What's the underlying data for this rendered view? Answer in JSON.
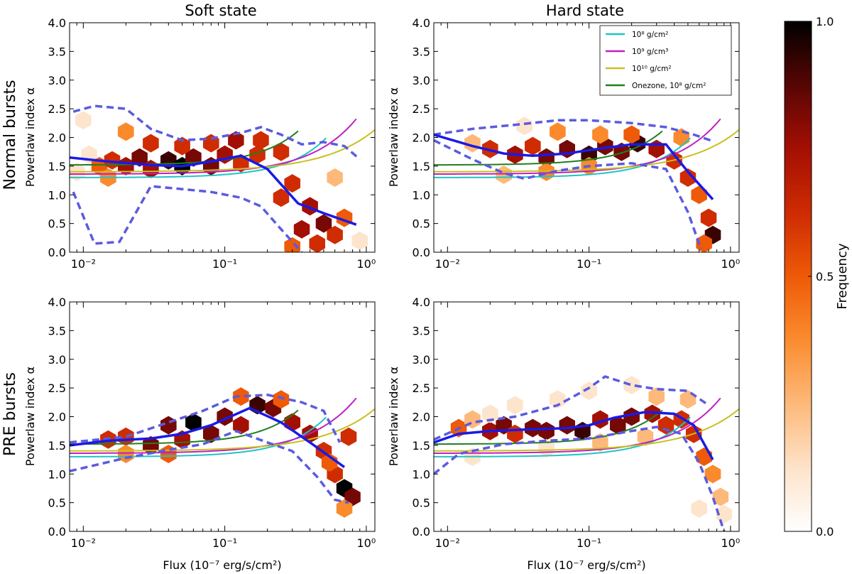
{
  "figure": {
    "column_titles": [
      "Soft state",
      "Hard state"
    ],
    "row_titles": [
      "Normal bursts",
      "PRE bursts"
    ],
    "ylabel": "Powerlaw index α",
    "xlabel": "Flux (10⁻⁷ erg/s/cm²)",
    "colors": {
      "hex_cmap": [
        "#ffffff",
        "#fde4cc",
        "#fdb97a",
        "#fa8a2c",
        "#ee5a07",
        "#cf2c02",
        "#a40f03",
        "#760805",
        "#3a0302",
        "#000000"
      ],
      "median_line": "#1a1ae6",
      "envelope_dashed": "#5b5be0",
      "model_1e8": "#20c4c4",
      "model_1e9": "#c020c0",
      "model_1e10": "#c8c020",
      "model_onezone": "#208020"
    }
  },
  "legend": {
    "items": [
      {
        "label": "10⁸ g/cm²",
        "color": "#20c4c4"
      },
      {
        "label": "10⁹ g/cm³",
        "color": "#c020c0"
      },
      {
        "label": "10¹⁰ g/cm²",
        "color": "#c8c020"
      },
      {
        "label": "Onezone, 10⁸ g/cm²",
        "color": "#208020"
      }
    ]
  },
  "colorbar": {
    "label": "Frequency",
    "ticks": [
      "0.0",
      "0.5",
      "1.0"
    ],
    "range": [
      0,
      1
    ]
  },
  "chart_data": [
    {
      "type": "scatter",
      "title": "Soft state",
      "row": "Normal bursts",
      "xscale": "log",
      "xlim": [
        0.008,
        1.15
      ],
      "ylim": [
        0,
        4
      ],
      "xticks": [
        "10⁻²",
        "10⁻¹",
        "10⁰"
      ],
      "yticks": [
        "0.0",
        "0.5",
        "1.0",
        "1.5",
        "2.0",
        "2.5",
        "3.0",
        "3.5",
        "4.0"
      ],
      "median": [
        [
          0.008,
          1.65
        ],
        [
          0.015,
          1.58
        ],
        [
          0.03,
          1.52
        ],
        [
          0.05,
          1.5
        ],
        [
          0.08,
          1.58
        ],
        [
          0.13,
          1.68
        ],
        [
          0.2,
          1.45
        ],
        [
          0.33,
          0.85
        ],
        [
          0.5,
          0.68
        ],
        [
          0.85,
          0.48
        ]
      ],
      "envelope_upper": [
        [
          0.0085,
          2.45
        ],
        [
          0.012,
          2.55
        ],
        [
          0.02,
          2.5
        ],
        [
          0.03,
          2.15
        ],
        [
          0.05,
          1.95
        ],
        [
          0.08,
          1.98
        ],
        [
          0.13,
          2.08
        ],
        [
          0.18,
          2.18
        ],
        [
          0.25,
          2.05
        ],
        [
          0.35,
          1.88
        ],
        [
          0.5,
          1.92
        ],
        [
          0.7,
          1.85
        ],
        [
          0.9,
          1.62
        ]
      ],
      "envelope_lower": [
        [
          0.0085,
          1.05
        ],
        [
          0.012,
          0.15
        ],
        [
          0.018,
          0.18
        ],
        [
          0.03,
          1.15
        ],
        [
          0.05,
          1.1
        ],
        [
          0.08,
          1.05
        ],
        [
          0.13,
          0.95
        ],
        [
          0.18,
          0.8
        ],
        [
          0.25,
          0.4
        ],
        [
          0.35,
          0.0
        ]
      ],
      "models_end_x": [
        0.52,
        0.85,
        1.15,
        0.33
      ],
      "hexbins": [
        [
          0.009,
          1.4,
          0.1
        ],
        [
          0.011,
          1.7,
          0.15
        ],
        [
          0.013,
          1.5,
          0.4
        ],
        [
          0.016,
          1.6,
          0.6
        ],
        [
          0.02,
          1.5,
          0.7
        ],
        [
          0.025,
          1.65,
          0.75
        ],
        [
          0.03,
          1.45,
          0.7
        ],
        [
          0.04,
          1.6,
          0.85
        ],
        [
          0.05,
          1.5,
          0.95
        ],
        [
          0.06,
          1.65,
          0.8
        ],
        [
          0.08,
          1.5,
          0.75
        ],
        [
          0.1,
          1.7,
          0.7
        ],
        [
          0.13,
          1.55,
          0.6
        ],
        [
          0.17,
          1.7,
          0.55
        ],
        [
          0.02,
          2.1,
          0.3
        ],
        [
          0.03,
          1.9,
          0.5
        ],
        [
          0.05,
          1.85,
          0.55
        ],
        [
          0.08,
          1.9,
          0.6
        ],
        [
          0.12,
          1.95,
          0.65
        ],
        [
          0.18,
          1.95,
          0.55
        ],
        [
          0.25,
          1.75,
          0.5
        ],
        [
          0.3,
          1.2,
          0.6
        ],
        [
          0.4,
          0.8,
          0.7
        ],
        [
          0.5,
          0.5,
          0.75
        ],
        [
          0.35,
          0.4,
          0.7
        ],
        [
          0.6,
          0.3,
          0.5
        ],
        [
          0.3,
          0.1,
          0.4
        ],
        [
          0.45,
          0.15,
          0.5
        ],
        [
          0.7,
          0.6,
          0.45
        ],
        [
          0.25,
          0.95,
          0.5
        ],
        [
          0.015,
          1.3,
          0.35
        ],
        [
          0.01,
          2.3,
          0.1
        ],
        [
          0.6,
          1.3,
          0.2
        ],
        [
          0.9,
          0.2,
          0.15
        ]
      ]
    },
    {
      "type": "scatter",
      "title": "Hard state",
      "row": "Normal bursts",
      "xscale": "log",
      "xlim": [
        0.008,
        1.15
      ],
      "ylim": [
        0,
        4
      ],
      "xticks": [
        "10⁻²",
        "10⁻¹",
        "10⁰"
      ],
      "yticks": [
        "0.0",
        "0.5",
        "1.0",
        "1.5",
        "2.0",
        "2.5",
        "3.0",
        "3.5",
        "4.0"
      ],
      "median": [
        [
          0.008,
          2.05
        ],
        [
          0.015,
          1.85
        ],
        [
          0.025,
          1.72
        ],
        [
          0.04,
          1.68
        ],
        [
          0.07,
          1.72
        ],
        [
          0.1,
          1.78
        ],
        [
          0.2,
          1.88
        ],
        [
          0.35,
          1.88
        ],
        [
          0.5,
          1.4
        ],
        [
          0.75,
          0.92
        ]
      ],
      "envelope_upper": [
        [
          0.008,
          2.05
        ],
        [
          0.015,
          2.15
        ],
        [
          0.03,
          2.22
        ],
        [
          0.06,
          2.3
        ],
        [
          0.1,
          2.3
        ],
        [
          0.2,
          2.25
        ],
        [
          0.35,
          2.18
        ],
        [
          0.55,
          2.05
        ],
        [
          0.72,
          1.95
        ]
      ],
      "envelope_lower": [
        [
          0.008,
          1.95
        ],
        [
          0.015,
          1.62
        ],
        [
          0.025,
          1.38
        ],
        [
          0.035,
          1.28
        ],
        [
          0.06,
          1.42
        ],
        [
          0.1,
          1.5
        ],
        [
          0.2,
          1.55
        ],
        [
          0.35,
          1.45
        ],
        [
          0.5,
          0.7
        ],
        [
          0.62,
          0.05
        ]
      ],
      "models_end_x": [
        0.52,
        0.85,
        1.15,
        0.33
      ],
      "hexbins": [
        [
          0.02,
          1.8,
          0.5
        ],
        [
          0.03,
          1.7,
          0.7
        ],
        [
          0.04,
          1.85,
          0.6
        ],
        [
          0.05,
          1.65,
          0.8
        ],
        [
          0.07,
          1.8,
          0.75
        ],
        [
          0.1,
          1.7,
          0.85
        ],
        [
          0.13,
          1.85,
          0.8
        ],
        [
          0.17,
          1.75,
          0.75
        ],
        [
          0.22,
          1.9,
          0.85
        ],
        [
          0.3,
          1.8,
          0.7
        ],
        [
          0.4,
          1.6,
          0.55
        ],
        [
          0.5,
          1.3,
          0.5
        ],
        [
          0.6,
          1.0,
          0.45
        ],
        [
          0.7,
          0.6,
          0.55
        ],
        [
          0.75,
          0.3,
          0.9
        ],
        [
          0.65,
          0.15,
          0.4
        ],
        [
          0.035,
          2.2,
          0.15
        ],
        [
          0.06,
          2.1,
          0.3
        ],
        [
          0.12,
          2.05,
          0.35
        ],
        [
          0.2,
          2.05,
          0.4
        ],
        [
          0.025,
          1.35,
          0.2
        ],
        [
          0.05,
          1.4,
          0.3
        ],
        [
          0.1,
          1.5,
          0.35
        ],
        [
          0.015,
          1.9,
          0.25
        ],
        [
          0.45,
          2.0,
          0.3
        ]
      ]
    },
    {
      "type": "scatter",
      "title": "Soft state",
      "row": "PRE bursts",
      "xscale": "log",
      "xlim": [
        0.008,
        1.15
      ],
      "ylim": [
        0,
        4
      ],
      "xticks": [
        "10⁻²",
        "10⁻¹",
        "10⁰"
      ],
      "yticks": [
        "0.0",
        "0.5",
        "1.0",
        "1.5",
        "2.0",
        "2.5",
        "3.0",
        "3.5",
        "4.0"
      ],
      "median": [
        [
          0.008,
          1.5
        ],
        [
          0.015,
          1.58
        ],
        [
          0.03,
          1.62
        ],
        [
          0.05,
          1.7
        ],
        [
          0.08,
          1.85
        ],
        [
          0.15,
          2.15
        ],
        [
          0.25,
          1.9
        ],
        [
          0.4,
          1.55
        ],
        [
          0.7,
          1.12
        ]
      ],
      "envelope_upper": [
        [
          0.008,
          1.55
        ],
        [
          0.02,
          1.65
        ],
        [
          0.04,
          1.9
        ],
        [
          0.07,
          2.1
        ],
        [
          0.12,
          2.35
        ],
        [
          0.2,
          2.38
        ],
        [
          0.35,
          2.25
        ],
        [
          0.5,
          2.1
        ],
        [
          0.65,
          1.55
        ]
      ],
      "envelope_lower": [
        [
          0.008,
          1.05
        ],
        [
          0.02,
          1.28
        ],
        [
          0.04,
          1.42
        ],
        [
          0.07,
          1.52
        ],
        [
          0.12,
          1.75
        ],
        [
          0.2,
          1.55
        ],
        [
          0.3,
          1.4
        ],
        [
          0.45,
          0.95
        ],
        [
          0.6,
          0.55
        ],
        [
          0.75,
          0.5
        ]
      ],
      "models_end_x": [
        0.52,
        0.85,
        1.15,
        0.33
      ],
      "hexbins": [
        [
          0.015,
          1.6,
          0.6
        ],
        [
          0.02,
          1.65,
          0.55
        ],
        [
          0.03,
          1.5,
          0.75
        ],
        [
          0.04,
          1.85,
          0.8
        ],
        [
          0.05,
          1.6,
          0.7
        ],
        [
          0.06,
          1.9,
          1.0
        ],
        [
          0.08,
          1.7,
          0.75
        ],
        [
          0.1,
          2.0,
          0.8
        ],
        [
          0.13,
          1.85,
          0.7
        ],
        [
          0.17,
          2.2,
          0.85
        ],
        [
          0.22,
          2.15,
          0.75
        ],
        [
          0.3,
          1.9,
          0.65
        ],
        [
          0.4,
          1.7,
          0.7
        ],
        [
          0.5,
          1.4,
          0.6
        ],
        [
          0.6,
          1.0,
          0.55
        ],
        [
          0.7,
          0.75,
          1.0
        ],
        [
          0.8,
          0.6,
          0.8
        ],
        [
          0.7,
          0.4,
          0.35
        ],
        [
          0.55,
          1.2,
          0.45
        ],
        [
          0.02,
          1.35,
          0.35
        ],
        [
          0.04,
          1.35,
          0.4
        ],
        [
          0.13,
          2.35,
          0.4
        ],
        [
          0.25,
          2.3,
          0.45
        ],
        [
          0.75,
          1.65,
          0.6
        ]
      ]
    },
    {
      "type": "scatter",
      "title": "Hard state",
      "row": "PRE bursts",
      "xscale": "log",
      "xlim": [
        0.008,
        1.15
      ],
      "ylim": [
        0,
        4
      ],
      "xticks": [
        "10⁻²",
        "10⁻¹",
        "10⁰"
      ],
      "yticks": [
        "0.0",
        "0.5",
        "1.0",
        "1.5",
        "2.0",
        "2.5",
        "3.0",
        "3.5",
        "4.0"
      ],
      "median": [
        [
          0.008,
          1.55
        ],
        [
          0.012,
          1.7
        ],
        [
          0.02,
          1.75
        ],
        [
          0.04,
          1.78
        ],
        [
          0.07,
          1.8
        ],
        [
          0.1,
          1.85
        ],
        [
          0.15,
          1.98
        ],
        [
          0.25,
          2.08
        ],
        [
          0.4,
          2.05
        ],
        [
          0.55,
          1.85
        ],
        [
          0.75,
          1.25
        ]
      ],
      "envelope_upper": [
        [
          0.008,
          1.6
        ],
        [
          0.015,
          1.9
        ],
        [
          0.03,
          2.0
        ],
        [
          0.06,
          2.2
        ],
        [
          0.1,
          2.5
        ],
        [
          0.13,
          2.7
        ],
        [
          0.2,
          2.55
        ],
        [
          0.3,
          2.48
        ],
        [
          0.5,
          2.45
        ],
        [
          0.7,
          2.2
        ]
      ],
      "envelope_lower": [
        [
          0.008,
          1.0
        ],
        [
          0.012,
          1.35
        ],
        [
          0.025,
          1.52
        ],
        [
          0.05,
          1.58
        ],
        [
          0.1,
          1.62
        ],
        [
          0.2,
          1.75
        ],
        [
          0.3,
          1.82
        ],
        [
          0.45,
          1.7
        ],
        [
          0.6,
          1.2
        ],
        [
          0.75,
          0.6
        ],
        [
          0.9,
          0.0
        ]
      ],
      "models_end_x": [
        0.52,
        0.85,
        1.15,
        0.33
      ],
      "hexbins": [
        [
          0.012,
          1.8,
          0.4
        ],
        [
          0.015,
          1.95,
          0.2
        ],
        [
          0.02,
          1.75,
          0.7
        ],
        [
          0.025,
          1.85,
          0.75
        ],
        [
          0.03,
          1.7,
          0.6
        ],
        [
          0.04,
          1.8,
          0.8
        ],
        [
          0.05,
          1.75,
          0.75
        ],
        [
          0.07,
          1.85,
          0.8
        ],
        [
          0.09,
          1.75,
          0.9
        ],
        [
          0.12,
          1.95,
          0.7
        ],
        [
          0.16,
          1.85,
          0.75
        ],
        [
          0.2,
          2.0,
          0.75
        ],
        [
          0.28,
          2.05,
          0.7
        ],
        [
          0.35,
          1.85,
          0.6
        ],
        [
          0.45,
          1.95,
          0.55
        ],
        [
          0.55,
          1.7,
          0.5
        ],
        [
          0.65,
          1.3,
          0.4
        ],
        [
          0.75,
          1.0,
          0.35
        ],
        [
          0.85,
          0.6,
          0.2
        ],
        [
          0.9,
          0.3,
          0.1
        ],
        [
          0.03,
          2.2,
          0.1
        ],
        [
          0.06,
          2.3,
          0.12
        ],
        [
          0.1,
          2.45,
          0.12
        ],
        [
          0.2,
          2.55,
          0.1
        ],
        [
          0.3,
          2.35,
          0.2
        ],
        [
          0.015,
          1.3,
          0.15
        ],
        [
          0.05,
          1.45,
          0.15
        ],
        [
          0.12,
          1.55,
          0.2
        ],
        [
          0.25,
          1.65,
          0.2
        ],
        [
          0.5,
          2.3,
          0.2
        ],
        [
          0.02,
          2.05,
          0.08
        ],
        [
          0.6,
          0.4,
          0.1
        ]
      ]
    }
  ]
}
